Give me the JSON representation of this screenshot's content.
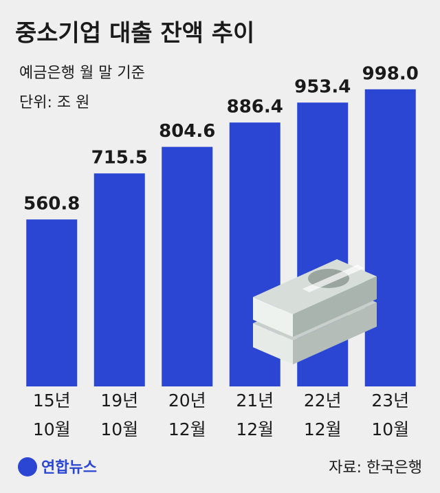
{
  "chart_data": {
    "type": "bar",
    "title": "중소기업 대출 잔액 추이",
    "subtitle": [
      "예금은행 월 말 기준",
      "단위: 조 원"
    ],
    "categories": [
      [
        "15년",
        "10월"
      ],
      [
        "19년",
        "10월"
      ],
      [
        "20년",
        "12월"
      ],
      [
        "21년",
        "12월"
      ],
      [
        "22년",
        "12월"
      ],
      [
        "23년",
        "10월"
      ]
    ],
    "values": [
      560.8,
      715.5,
      804.6,
      886.4,
      953.4,
      998.0
    ],
    "value_labels": [
      "560.8",
      "715.5",
      "804.6",
      "886.4",
      "953.4",
      "998.0"
    ],
    "color": "#2b46d3",
    "ylim": [
      0,
      1000
    ],
    "source": "자료: 한국은행",
    "logo": "연합뉴스"
  }
}
